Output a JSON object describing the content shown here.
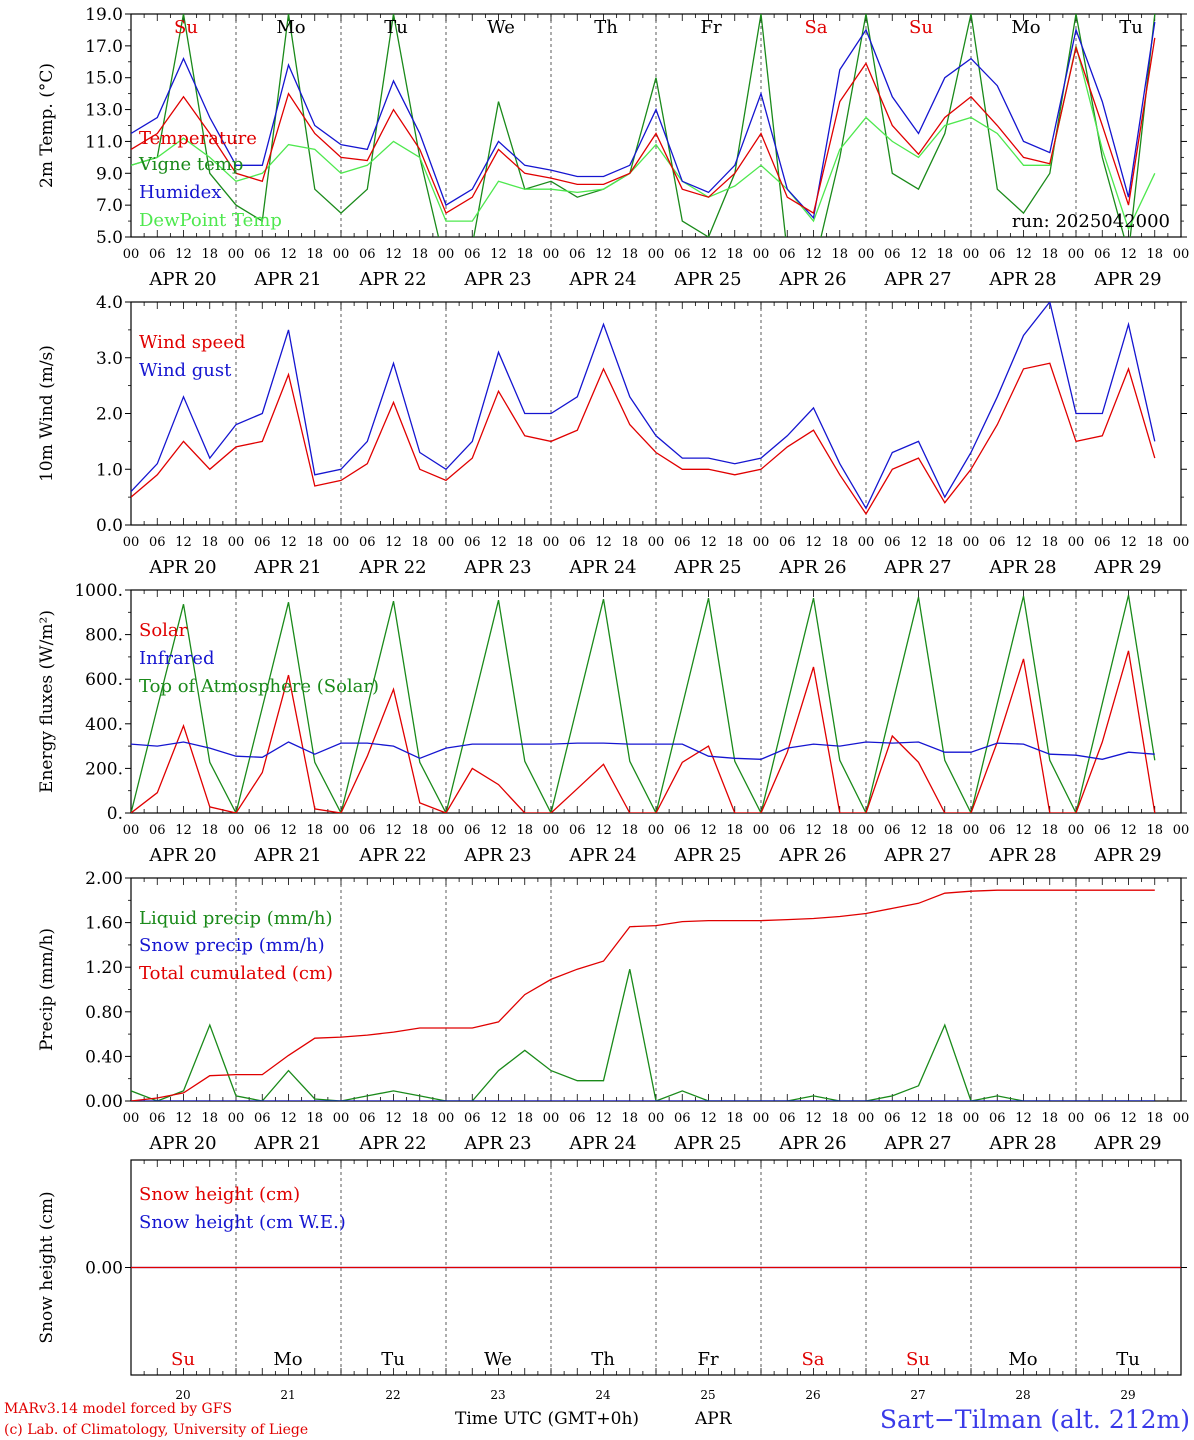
{
  "days": [
    "20",
    "21",
    "22",
    "23",
    "24",
    "25",
    "26",
    "27",
    "28",
    "29"
  ],
  "date_labels": [
    "APR 20",
    "APR 21",
    "APR 22",
    "APR 23",
    "APR 24",
    "APR 25",
    "APR 26",
    "APR 27",
    "APR 28",
    "APR 29"
  ],
  "hour_ticks": [
    "00",
    "06",
    "12",
    "18"
  ],
  "weekdays": [
    "Su",
    "Mo",
    "Tu",
    "We",
    "Th",
    "Fr",
    "Sa",
    "Su",
    "Mo",
    "Tu"
  ],
  "weekday_colors": [
    "#e00000",
    "#000000",
    "#000000",
    "#000000",
    "#000000",
    "#000000",
    "#e00000",
    "#e00000",
    "#000000",
    "#000000"
  ],
  "footer": {
    "model": "MARv3.14 model forced by GFS",
    "copyright": "(c) Lab. of Climatology, University of Liege",
    "time_axis": "Time UTC (GMT+0h)",
    "month": "APR",
    "station": "Sart−Tilman (alt. 212m)"
  },
  "colors": {
    "red": "#e00000",
    "green": "#1a8a1a",
    "blue": "#1515d0",
    "lightgreen": "#4ee84e",
    "station": "#3a3ae8"
  },
  "chart_data": [
    {
      "type": "line",
      "ylabel": "2m Temp. (°C)",
      "ylim": [
        5,
        19
      ],
      "yticks": [
        "5.0",
        "7.0",
        "9.0",
        "11.0",
        "13.0",
        "15.0",
        "17.0",
        "19.0"
      ],
      "run_label": "run: 2025042000",
      "x_hours": [
        0,
        6,
        12,
        18,
        24,
        30,
        36,
        42,
        48,
        54,
        60,
        66,
        72,
        78,
        84,
        90,
        96,
        102,
        108,
        114,
        120,
        126,
        132,
        138,
        144,
        150,
        156,
        162,
        168,
        174,
        180,
        186,
        192,
        198,
        204,
        210,
        216,
        222,
        228,
        234
      ],
      "series": [
        {
          "name": "Temperature",
          "color": "#e00000",
          "values": [
            10.5,
            11.5,
            13.8,
            11.5,
            9.0,
            8.5,
            14.0,
            11.5,
            10.0,
            9.8,
            13.0,
            10.5,
            6.5,
            7.5,
            10.5,
            9.0,
            8.7,
            8.3,
            8.3,
            9.0,
            11.5,
            8.0,
            7.5,
            9.0,
            11.5,
            7.5,
            6.5,
            13.5,
            15.9,
            12.0,
            10.2,
            12.5,
            13.8,
            12.0,
            10.0,
            9.6,
            16.9,
            12.0,
            7.0,
            17.5
          ]
        },
        {
          "name": "Vigne temp",
          "color": "#1a8a1a",
          "values": [
            9.5,
            10.0,
            19.0,
            9.0,
            7.0,
            6.0,
            19.0,
            8.0,
            6.5,
            8.0,
            19.0,
            10.0,
            3.0,
            4.5,
            13.5,
            8.0,
            8.5,
            7.5,
            8.0,
            9.0,
            15.0,
            6.0,
            5.0,
            9.0,
            19.0,
            4.0,
            3.0,
            10.0,
            19.0,
            9.0,
            8.0,
            11.5,
            19.0,
            8.0,
            6.5,
            9.0,
            19.0,
            10.0,
            4.0,
            19.0
          ]
        },
        {
          "name": "Humidex",
          "color": "#1515d0",
          "values": [
            11.5,
            12.5,
            16.2,
            12.5,
            9.5,
            9.5,
            15.8,
            12.0,
            10.8,
            10.5,
            14.8,
            11.5,
            7.0,
            8.0,
            11.0,
            9.5,
            9.2,
            8.8,
            8.8,
            9.5,
            13.0,
            8.5,
            7.8,
            9.5,
            14.0,
            8.0,
            6.2,
            15.5,
            18.0,
            13.8,
            11.5,
            15.0,
            16.2,
            14.5,
            11.0,
            10.3,
            18.0,
            13.5,
            7.5,
            18.5
          ]
        },
        {
          "name": "DewPoint Temp",
          "color": "#4ee84e",
          "values": [
            9.5,
            10.0,
            11.2,
            10.0,
            8.5,
            9.0,
            10.8,
            10.5,
            9.0,
            9.5,
            11.0,
            10.0,
            6.0,
            6.0,
            8.5,
            8.0,
            8.0,
            7.8,
            8.0,
            9.0,
            10.8,
            8.5,
            7.5,
            8.2,
            9.5,
            8.0,
            6.0,
            10.5,
            12.5,
            11.0,
            10.0,
            12.0,
            12.5,
            11.5,
            9.5,
            9.5,
            17.0,
            10.5,
            5.5,
            9.0
          ]
        }
      ]
    },
    {
      "type": "line",
      "ylabel": "10m Wind (m/s)",
      "ylim": [
        0,
        4
      ],
      "yticks": [
        "0.0",
        "1.0",
        "2.0",
        "3.0",
        "4.0"
      ],
      "x_hours": [
        0,
        6,
        12,
        18,
        24,
        30,
        36,
        42,
        48,
        54,
        60,
        66,
        72,
        78,
        84,
        90,
        96,
        102,
        108,
        114,
        120,
        126,
        132,
        138,
        144,
        150,
        156,
        162,
        168,
        174,
        180,
        186,
        192,
        198,
        204,
        210,
        216,
        222,
        228,
        234
      ],
      "series": [
        {
          "name": "Wind speed",
          "color": "#e00000",
          "values": [
            0.5,
            0.9,
            1.5,
            1.0,
            1.4,
            1.5,
            2.7,
            0.7,
            0.8,
            1.1,
            2.2,
            1.0,
            0.8,
            1.2,
            2.4,
            1.6,
            1.5,
            1.7,
            2.8,
            1.8,
            1.3,
            1.0,
            1.0,
            0.9,
            1.0,
            1.4,
            1.7,
            0.9,
            0.2,
            1.0,
            1.2,
            0.4,
            1.0,
            1.8,
            2.8,
            2.9,
            1.5,
            1.6,
            2.8,
            1.2
          ]
        },
        {
          "name": "Wind gust",
          "color": "#1515d0",
          "values": [
            0.6,
            1.1,
            2.3,
            1.2,
            1.8,
            2.0,
            3.5,
            0.9,
            1.0,
            1.5,
            2.9,
            1.3,
            1.0,
            1.5,
            3.1,
            2.0,
            2.0,
            2.3,
            3.6,
            2.3,
            1.6,
            1.2,
            1.2,
            1.1,
            1.2,
            1.6,
            2.1,
            1.1,
            0.3,
            1.3,
            1.5,
            0.5,
            1.3,
            2.3,
            3.4,
            4.0,
            2.0,
            2.0,
            3.6,
            1.5
          ]
        }
      ]
    },
    {
      "type": "line",
      "ylabel": "Energy fluxes (W/m²)",
      "ylim": [
        0,
        1100
      ],
      "yticks": [
        "0.",
        "200.",
        "400.",
        "600.",
        "800.",
        "1000."
      ],
      "x_hours": [
        0,
        6,
        12,
        18,
        24,
        30,
        36,
        42,
        48,
        54,
        60,
        66,
        72,
        78,
        84,
        90,
        96,
        102,
        108,
        114,
        120,
        126,
        132,
        138,
        144,
        150,
        156,
        162,
        168,
        174,
        180,
        186,
        192,
        198,
        204,
        210,
        216,
        222,
        228,
        234
      ],
      "series": [
        {
          "name": "Solar",
          "color": "#e00000",
          "values": [
            0,
            100,
            430,
            30,
            0,
            200,
            680,
            20,
            0,
            280,
            610,
            50,
            0,
            220,
            140,
            0,
            0,
            120,
            240,
            0,
            0,
            250,
            330,
            0,
            0,
            300,
            720,
            0,
            0,
            380,
            250,
            0,
            0,
            350,
            760,
            0,
            0,
            350,
            800,
            0
          ]
        },
        {
          "name": "Infrared",
          "color": "#1515d0",
          "values": [
            340,
            330,
            350,
            320,
            280,
            275,
            350,
            290,
            345,
            345,
            330,
            270,
            320,
            340,
            340,
            340,
            340,
            345,
            345,
            340,
            340,
            340,
            280,
            270,
            265,
            320,
            340,
            330,
            350,
            345,
            350,
            300,
            300,
            345,
            340,
            290,
            285,
            265,
            300,
            290
          ]
        },
        {
          "name": "Top of Atmosphere (Solar)",
          "color": "#1a8a1a",
          "values": [
            0,
            520,
            1030,
            250,
            0,
            520,
            1040,
            250,
            0,
            525,
            1045,
            250,
            0,
            525,
            1050,
            255,
            0,
            530,
            1055,
            255,
            0,
            530,
            1060,
            255,
            0,
            535,
            1060,
            260,
            0,
            535,
            1065,
            260,
            0,
            540,
            1070,
            260,
            0,
            540,
            1075,
            260
          ]
        }
      ]
    },
    {
      "type": "line",
      "ylabel": "Precip (mm/h)",
      "ylim": [
        0,
        2.2
      ],
      "yticks": [
        "0.00",
        "0.40",
        "0.80",
        "1.20",
        "1.60",
        "2.00"
      ],
      "x_hours": [
        0,
        6,
        12,
        18,
        24,
        30,
        36,
        42,
        48,
        54,
        60,
        66,
        72,
        78,
        84,
        90,
        96,
        102,
        108,
        114,
        120,
        126,
        132,
        138,
        144,
        150,
        156,
        162,
        168,
        174,
        180,
        186,
        192,
        198,
        204,
        210,
        216,
        222,
        228,
        234
      ],
      "series": [
        {
          "name": "Liquid precip (mm/h)",
          "color": "#1a8a1a",
          "values": [
            0.1,
            0.0,
            0.1,
            0.75,
            0.05,
            0.0,
            0.3,
            0.02,
            0.0,
            0.05,
            0.1,
            0.05,
            0.0,
            0.0,
            0.3,
            0.5,
            0.3,
            0.2,
            0.2,
            1.3,
            0.0,
            0.1,
            0.0,
            0.0,
            0.0,
            0.0,
            0.05,
            0.0,
            0.0,
            0.05,
            0.15,
            0.75,
            0.0,
            0.05,
            0.0,
            0.0,
            0.0,
            0.0,
            0.0,
            0.0
          ]
        },
        {
          "name": "Snow precip (mm/h)",
          "color": "#1515d0",
          "values": [
            0,
            0,
            0,
            0,
            0,
            0,
            0,
            0,
            0,
            0,
            0,
            0,
            0,
            0,
            0,
            0,
            0,
            0,
            0,
            0,
            0,
            0,
            0,
            0,
            0,
            0,
            0,
            0,
            0,
            0,
            0,
            0,
            0,
            0,
            0,
            0,
            0,
            0,
            0,
            0
          ]
        },
        {
          "name": "Total cumulated (cm)",
          "color": "#e00000",
          "values": [
            0.0,
            0.03,
            0.08,
            0.25,
            0.26,
            0.26,
            0.45,
            0.62,
            0.63,
            0.65,
            0.68,
            0.72,
            0.72,
            0.72,
            0.78,
            1.05,
            1.2,
            1.3,
            1.38,
            1.72,
            1.73,
            1.77,
            1.78,
            1.78,
            1.78,
            1.79,
            1.8,
            1.82,
            1.85,
            1.9,
            1.95,
            2.05,
            2.07,
            2.08,
            2.08,
            2.08,
            2.08,
            2.08,
            2.08,
            2.08
          ]
        }
      ]
    },
    {
      "type": "line",
      "ylabel": "Snow height (cm)",
      "yticks": [
        "0.00"
      ],
      "x_hours": [
        0,
        240
      ],
      "series": [
        {
          "name": "Snow height (cm)",
          "color": "#e00000",
          "values": [
            0,
            0
          ]
        },
        {
          "name": "Snow height (cm W.E.)",
          "color": "#1515d0",
          "values": [
            0,
            0
          ]
        }
      ]
    }
  ]
}
